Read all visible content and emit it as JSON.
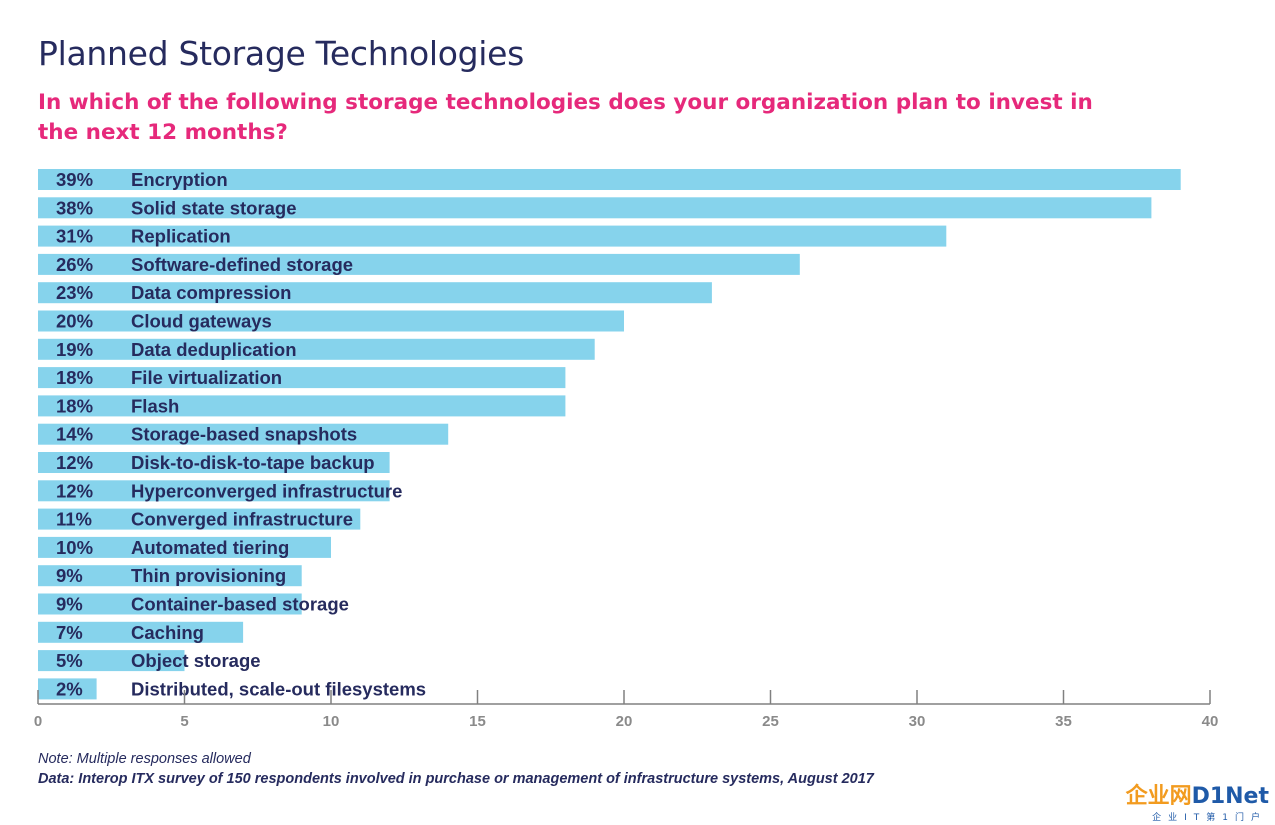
{
  "title": "Planned Storage Technologies",
  "subtitle": "In which of the following storage technologies does your organization plan to invest in the next 12 months?",
  "chart_data": {
    "type": "bar",
    "orientation": "horizontal",
    "categories": [
      "Encryption",
      "Solid state storage",
      "Replication",
      "Software-defined storage",
      "Data compression",
      "Cloud gateways",
      "Data deduplication",
      "File virtualization",
      "Flash",
      "Storage-based snapshots",
      "Disk-to-disk-to-tape backup",
      "Hyperconverged infrastructure",
      "Converged infrastructure",
      "Automated tiering",
      "Thin provisioning",
      "Container-based storage",
      "Caching",
      "Object storage",
      "Distributed, scale-out filesystems"
    ],
    "values": [
      39,
      38,
      31,
      26,
      23,
      20,
      19,
      18,
      18,
      14,
      12,
      12,
      11,
      10,
      9,
      9,
      7,
      5,
      2
    ],
    "value_labels": [
      "39%",
      "38%",
      "31%",
      "26%",
      "23%",
      "20%",
      "19%",
      "18%",
      "18%",
      "14%",
      "12%",
      "12%",
      "11%",
      "10%",
      "9%",
      "9%",
      "7%",
      "5%",
      "2%"
    ],
    "xlim": [
      0,
      40
    ],
    "xticks": [
      0,
      5,
      10,
      15,
      20,
      25,
      30,
      35,
      40
    ],
    "bar_color": "#86d3ec",
    "label_color": "#262b5e",
    "axis_color": "#808080",
    "grid": false
  },
  "notes": {
    "note": "Note: Multiple responses allowed",
    "source": "Data: Interop ITX survey of 150 respondents involved in purchase or management of infrastructure systems, August 2017"
  },
  "logo": {
    "cn_text": "企业网",
    "en_text": "D1Net",
    "tagline": "企业IT第1门户"
  }
}
